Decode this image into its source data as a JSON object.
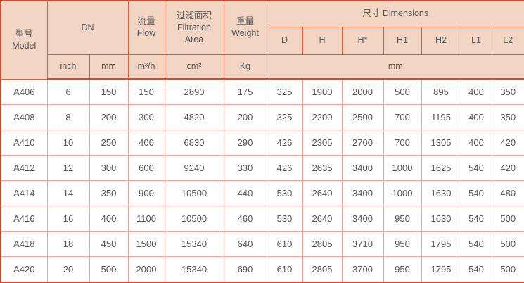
{
  "table": {
    "header": {
      "model_zh": "型号",
      "model_en": "Model",
      "dn": "DN",
      "flow_zh": "流量",
      "flow_en": "Flow",
      "filtration_zh": "过滤面积",
      "filtration_en1": "Filtration",
      "filtration_en2": "Area",
      "weight_zh": "重量",
      "weight_en": "Weight",
      "dimensions": "尺寸 Dimensions",
      "dim_cols": [
        "D",
        "H",
        "H*",
        "H1",
        "H2",
        "L1",
        "L2"
      ],
      "unit_inch": "inch",
      "unit_mm": "mm",
      "unit_flow": "m³/h",
      "unit_area": "cm²",
      "unit_weight": "Kg",
      "unit_dims": "mm"
    },
    "rows": [
      {
        "model": "A406",
        "inch": "6",
        "mm": "150",
        "flow": "150",
        "area": "2890",
        "weight": "175",
        "dims": [
          "325",
          "1900",
          "2000",
          "500",
          "895",
          "400",
          "350"
        ]
      },
      {
        "model": "A408",
        "inch": "8",
        "mm": "200",
        "flow": "300",
        "area": "4820",
        "weight": "200",
        "dims": [
          "325",
          "2200",
          "2500",
          "700",
          "1195",
          "400",
          "350"
        ]
      },
      {
        "model": "A410",
        "inch": "10",
        "mm": "250",
        "flow": "400",
        "area": "6830",
        "weight": "290",
        "dims": [
          "426",
          "2305",
          "2700",
          "700",
          "1305",
          "400",
          "420"
        ]
      },
      {
        "model": "A412",
        "inch": "12",
        "mm": "300",
        "flow": "600",
        "area": "9240",
        "weight": "330",
        "dims": [
          "426",
          "2635",
          "3400",
          "1000",
          "1625",
          "540",
          "420"
        ]
      },
      {
        "model": "A414",
        "inch": "14",
        "mm": "350",
        "flow": "900",
        "area": "10500",
        "weight": "440",
        "dims": [
          "530",
          "2640",
          "3400",
          "1000",
          "1630",
          "540",
          "480"
        ]
      },
      {
        "model": "A416",
        "inch": "16",
        "mm": "400",
        "flow": "1100",
        "area": "10500",
        "weight": "460",
        "dims": [
          "530",
          "2640",
          "3400",
          "950",
          "1630",
          "540",
          "500"
        ]
      },
      {
        "model": "A418",
        "inch": "18",
        "mm": "450",
        "flow": "1500",
        "area": "15340",
        "weight": "640",
        "dims": [
          "610",
          "2805",
          "3710",
          "950",
          "1795",
          "540",
          "500"
        ]
      },
      {
        "model": "A420",
        "inch": "20",
        "mm": "500",
        "flow": "2000",
        "area": "15340",
        "weight": "690",
        "dims": [
          "610",
          "2805",
          "3700",
          "950",
          "1795",
          "540",
          "500"
        ]
      }
    ],
    "colors": {
      "header_bg": "#f3d5c4",
      "border_strong": "#d24931",
      "border_header": "#df5c3b",
      "border_light": "#f0a29a",
      "text": "#565656"
    }
  }
}
